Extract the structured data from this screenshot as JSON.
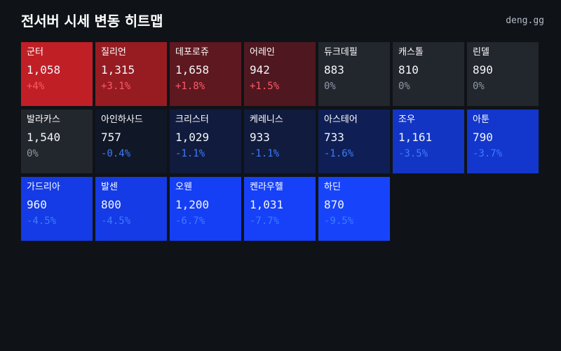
{
  "header": {
    "title": "전서버 시세 변동 히트맵",
    "brand": "deng.gg"
  },
  "colors": {
    "background": "#0f1318",
    "up": "#ff5a66",
    "down": "#3d7bff",
    "flat": "#8f98a6"
  },
  "items": [
    {
      "name": "군터",
      "price": "1,058",
      "change": "+4%",
      "change_value": 4.0,
      "direction": "up",
      "color": "#c11f26"
    },
    {
      "name": "질리언",
      "price": "1,315",
      "change": "+3.1%",
      "change_value": 3.1,
      "direction": "up",
      "color": "#961c22"
    },
    {
      "name": "데포로쥬",
      "price": "1,658",
      "change": "+1.8%",
      "change_value": 1.8,
      "direction": "up",
      "color": "#5e1820"
    },
    {
      "name": "어레인",
      "price": "942",
      "change": "+1.5%",
      "change_value": 1.5,
      "direction": "up",
      "color": "#4f1820"
    },
    {
      "name": "듀크데필",
      "price": "883",
      "change": "0%",
      "change_value": 0,
      "direction": "flat",
      "color": "#22262d"
    },
    {
      "name": "캐스톨",
      "price": "810",
      "change": "0%",
      "change_value": 0,
      "direction": "flat",
      "color": "#22262d"
    },
    {
      "name": "린델",
      "price": "890",
      "change": "0%",
      "change_value": 0,
      "direction": "flat",
      "color": "#22262d"
    },
    {
      "name": "발라카스",
      "price": "1,540",
      "change": "0%",
      "change_value": 0,
      "direction": "flat",
      "color": "#22262d"
    },
    {
      "name": "아인하사드",
      "price": "757",
      "change": "-0.4%",
      "change_value": -0.4,
      "direction": "down",
      "color": "#101726"
    },
    {
      "name": "크리스터",
      "price": "1,029",
      "change": "-1.1%",
      "change_value": -1.1,
      "direction": "down",
      "color": "#111b3d"
    },
    {
      "name": "케레니스",
      "price": "933",
      "change": "-1.1%",
      "change_value": -1.1,
      "direction": "down",
      "color": "#111b3d"
    },
    {
      "name": "아스테어",
      "price": "733",
      "change": "-1.6%",
      "change_value": -1.6,
      "direction": "down",
      "color": "#0f1f55"
    },
    {
      "name": "조우",
      "price": "1,161",
      "change": "-3.5%",
      "change_value": -3.5,
      "direction": "down",
      "color": "#1335c3"
    },
    {
      "name": "아툰",
      "price": "790",
      "change": "-3.7%",
      "change_value": -3.7,
      "direction": "down",
      "color": "#1336cc"
    },
    {
      "name": "가드리아",
      "price": "960",
      "change": "-4.5%",
      "change_value": -4.5,
      "direction": "down",
      "color": "#143be5"
    },
    {
      "name": "발센",
      "price": "800",
      "change": "-4.5%",
      "change_value": -4.5,
      "direction": "down",
      "color": "#143be5"
    },
    {
      "name": "오웬",
      "price": "1,200",
      "change": "-6.7%",
      "change_value": -6.7,
      "direction": "down",
      "color": "#153ff5"
    },
    {
      "name": "켄라우헬",
      "price": "1,031",
      "change": "-7.7%",
      "change_value": -7.7,
      "direction": "down",
      "color": "#1641f8"
    },
    {
      "name": "하딘",
      "price": "870",
      "change": "-9.5%",
      "change_value": -9.5,
      "direction": "down",
      "color": "#1744fb"
    }
  ]
}
